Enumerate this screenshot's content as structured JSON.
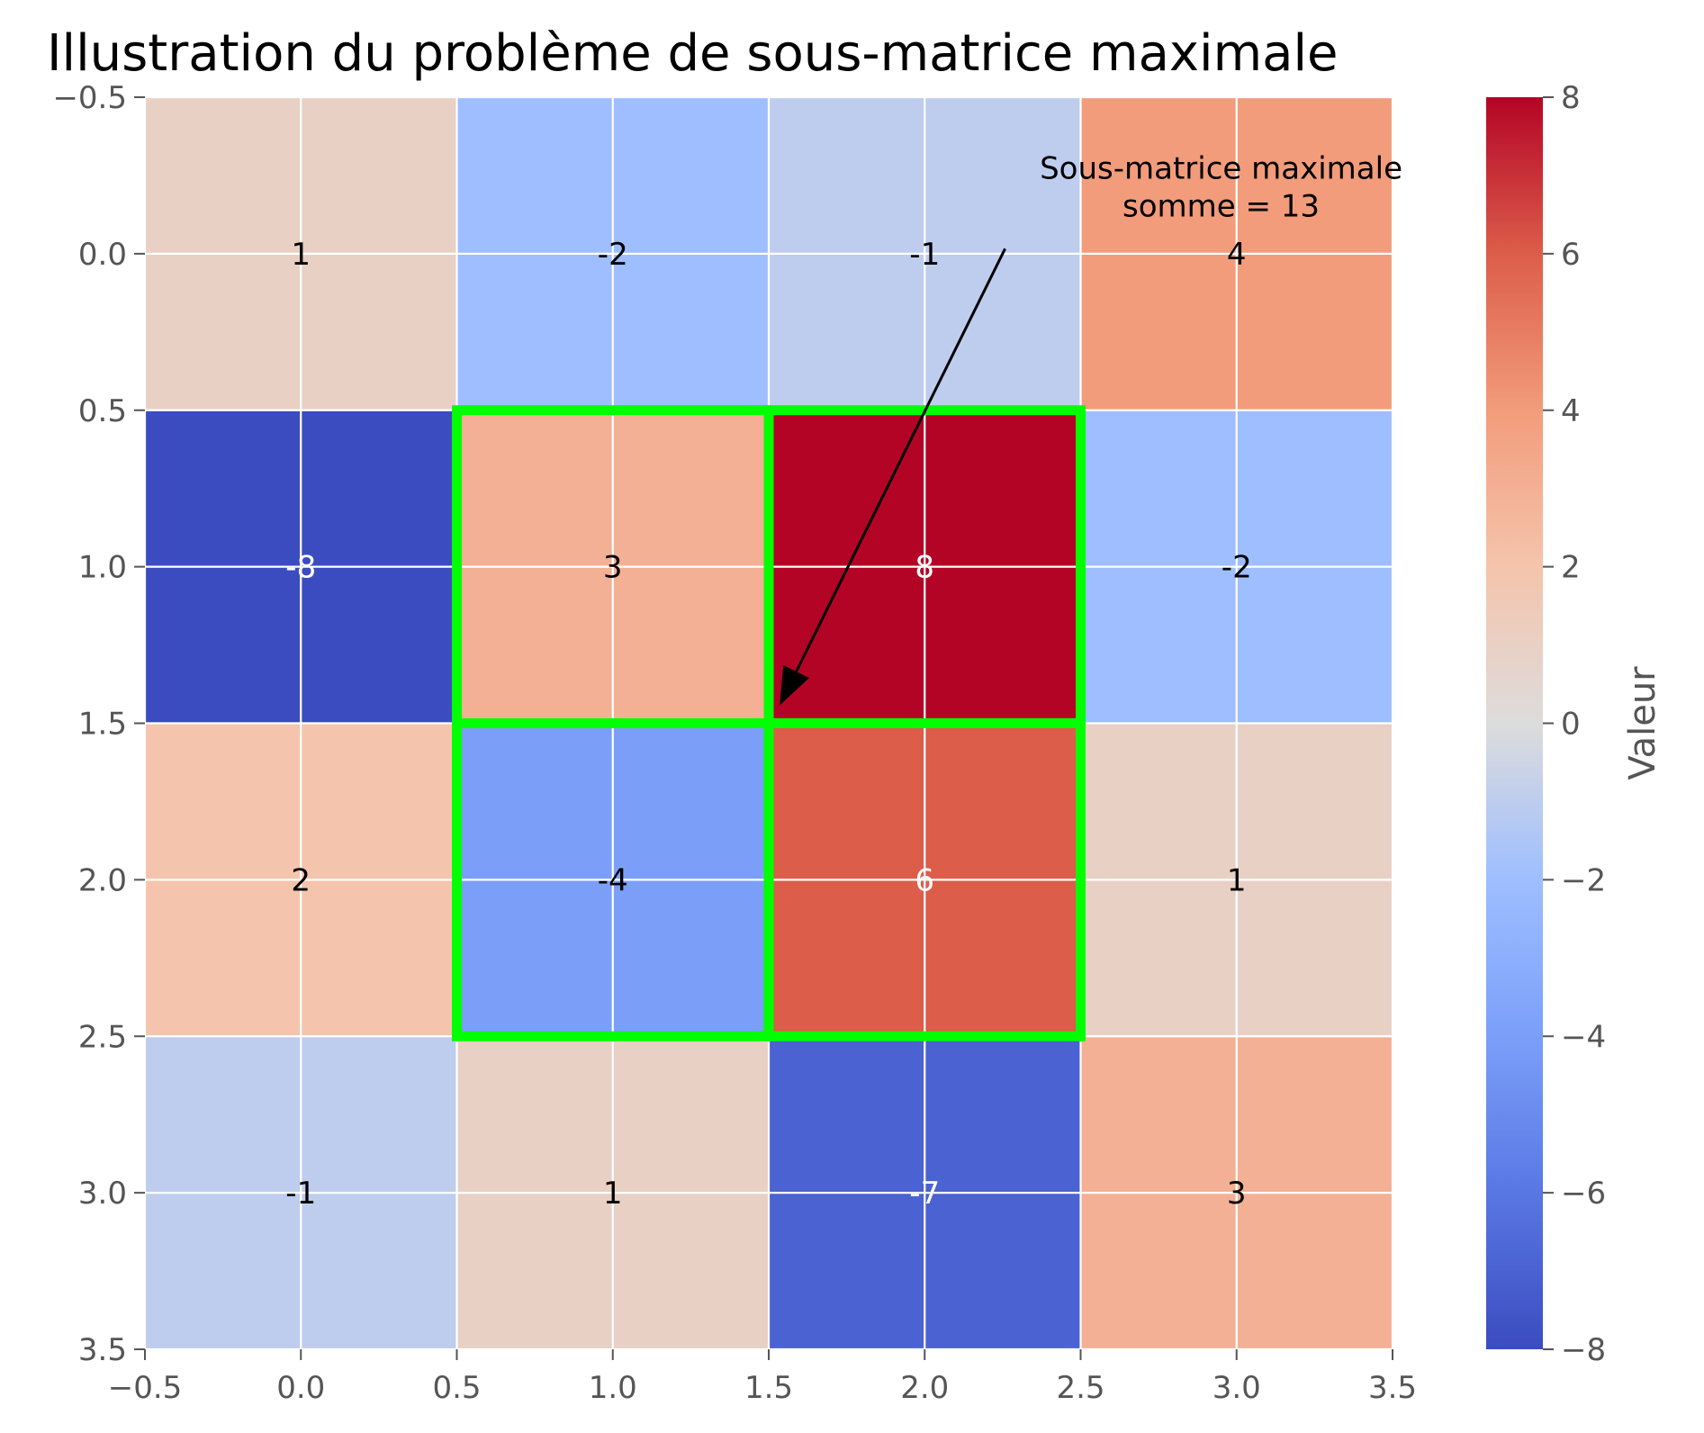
{
  "chart_data": {
    "type": "heatmap",
    "title": "Illustration du problème de sous-matrice maximale",
    "matrix": [
      [
        1,
        -2,
        -1,
        4
      ],
      [
        -8,
        3,
        8,
        -2
      ],
      [
        2,
        -4,
        6,
        1
      ],
      [
        -1,
        1,
        -7,
        3
      ]
    ],
    "cell_labels": [
      [
        "1",
        "-2",
        "-1",
        "4"
      ],
      [
        "-8",
        "3",
        "8",
        "-2"
      ],
      [
        "2",
        "-4",
        "6",
        "1"
      ],
      [
        "-1",
        "1",
        "-7",
        "3"
      ]
    ],
    "colormap": "coolwarm",
    "vmin": -8,
    "vmax": 8,
    "xlim": [
      -0.5,
      3.5
    ],
    "ylim": [
      3.5,
      -0.5
    ],
    "x_ticks": [
      "−0.5",
      "0.0",
      "0.5",
      "1.0",
      "1.5",
      "2.0",
      "2.5",
      "3.0",
      "3.5"
    ],
    "y_ticks": [
      "−0.5",
      "0.0",
      "0.5",
      "1.0",
      "1.5",
      "2.0",
      "2.5",
      "3.0",
      "3.5"
    ],
    "grid": true,
    "highlight": {
      "rows": [
        1,
        2
      ],
      "cols": [
        1,
        2
      ],
      "color": "#00ff00"
    },
    "annotation": {
      "lines": [
        "Sous-matrice maximale",
        "somme = 13"
      ],
      "text_at": [
        2.2,
        -0.2
      ],
      "arrow_tip": [
        1.5,
        1.4
      ]
    },
    "colorbar": {
      "label": "Valeur",
      "ticks": [
        "−8",
        "−6",
        "−4",
        "−2",
        "0",
        "2",
        "4",
        "6",
        "8"
      ]
    }
  }
}
